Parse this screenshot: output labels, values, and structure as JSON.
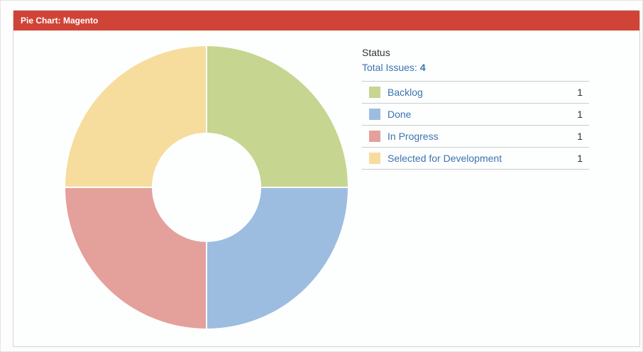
{
  "gadget": {
    "title": "Pie Chart: Magento",
    "header_color": "#d04437"
  },
  "chart_data": {
    "type": "pie",
    "donut": true,
    "legend_title": "Status",
    "total_label": "Total Issues:",
    "total_value": "4",
    "slices": [
      {
        "label": "Backlog",
        "value": 1,
        "color": "#c6d590"
      },
      {
        "label": "Done",
        "value": 1,
        "color": "#9dbde0"
      },
      {
        "label": "In Progress",
        "value": 1,
        "color": "#e4a09b"
      },
      {
        "label": "Selected for Development",
        "value": 1,
        "color": "#f6dd9d"
      }
    ]
  }
}
